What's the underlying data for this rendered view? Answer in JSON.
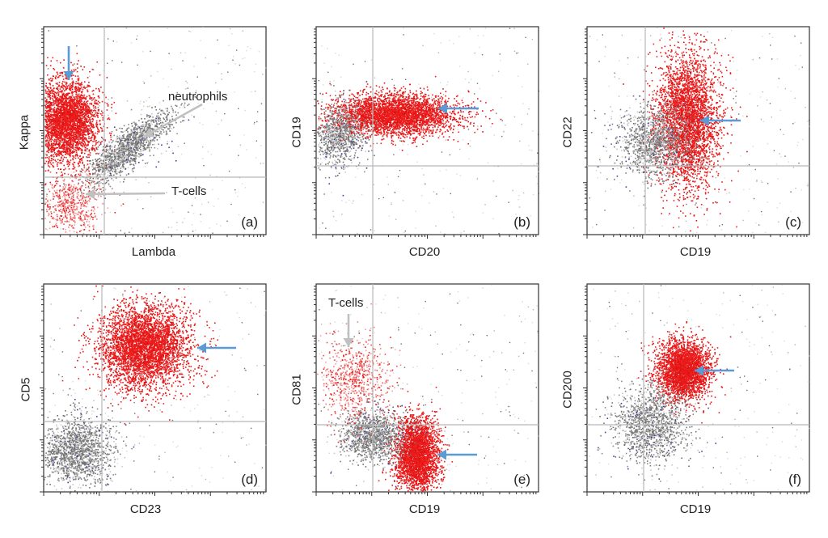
{
  "colors": {
    "cluster_red": "#ee1c1c",
    "cluster_gray": "#7a7a7a",
    "light_gray": "#c8c8c8",
    "arrow_blue": "#5b9bd5",
    "arrow_gray": "#c0c0c0",
    "dark_dots": "#333333",
    "blue_dots": "#4040a0"
  },
  "chart_data": [
    {
      "type": "scatter",
      "panel": "(a)",
      "xlabel": "Lambda",
      "ylabel": "Kappa",
      "scale": "log",
      "grid": false,
      "annotations": [
        {
          "text": "neutrophils",
          "arrow_color": "gray"
        },
        {
          "text": "T-cells",
          "arrow_color": "gray"
        },
        {
          "text": "",
          "arrow_color": "blue",
          "target": "Kappa-positive red population"
        }
      ],
      "series": [
        {
          "name": "",
          "color": "red",
          "cluster_center": [
            0.1,
            0.55
          ],
          "spread": [
            0.07,
            0.1
          ],
          "count": 3500
        },
        {
          "name": "",
          "color": "gray",
          "cluster_center": [
            0.38,
            0.42
          ],
          "spread": [
            0.09,
            0.06
          ],
          "count": 1400,
          "shape": "diagonal"
        },
        {
          "name": "",
          "color": "light-red",
          "cluster_center": [
            0.12,
            0.15
          ],
          "spread": [
            0.07,
            0.07
          ],
          "count": 600
        }
      ]
    },
    {
      "type": "scatter",
      "panel": "(b)",
      "xlabel": "CD20",
      "ylabel": "CD19",
      "scale": "log",
      "grid": false,
      "annotations": [
        {
          "text": "",
          "arrow_color": "blue",
          "target": "red population"
        }
      ],
      "series": [
        {
          "name": "",
          "color": "red",
          "cluster_center": [
            0.35,
            0.58
          ],
          "spread": [
            0.14,
            0.05
          ],
          "count": 3500
        },
        {
          "name": "",
          "color": "gray",
          "cluster_center": [
            0.1,
            0.48
          ],
          "spread": [
            0.06,
            0.07
          ],
          "count": 900
        }
      ]
    },
    {
      "type": "scatter",
      "panel": "(c)",
      "xlabel": "CD19",
      "ylabel": "CD22",
      "scale": "log",
      "grid": false,
      "annotations": [
        {
          "text": "",
          "arrow_color": "blue",
          "target": "red population"
        }
      ],
      "series": [
        {
          "name": "",
          "color": "red",
          "cluster_center": [
            0.45,
            0.55
          ],
          "spread": [
            0.07,
            0.16
          ],
          "count": 3500
        },
        {
          "name": "",
          "color": "gray",
          "cluster_center": [
            0.3,
            0.45
          ],
          "spread": [
            0.08,
            0.08
          ],
          "count": 1200
        }
      ]
    },
    {
      "type": "scatter",
      "panel": "(d)",
      "xlabel": "CD23",
      "ylabel": "CD5",
      "scale": "log",
      "grid": false,
      "annotations": [
        {
          "text": "",
          "arrow_color": "blue",
          "target": "red population"
        }
      ],
      "series": [
        {
          "name": "",
          "color": "red",
          "cluster_center": [
            0.45,
            0.7
          ],
          "spread": [
            0.1,
            0.1
          ],
          "count": 4000
        },
        {
          "name": "",
          "color": "gray",
          "cluster_center": [
            0.15,
            0.2
          ],
          "spread": [
            0.08,
            0.08
          ],
          "count": 1500
        }
      ]
    },
    {
      "type": "scatter",
      "panel": "(e)",
      "xlabel": "CD19",
      "ylabel": "CD81",
      "scale": "log",
      "grid": false,
      "annotations": [
        {
          "text": "T-cells",
          "arrow_color": "gray"
        },
        {
          "text": "",
          "arrow_color": "blue",
          "target": "red population"
        }
      ],
      "series": [
        {
          "name": "",
          "color": "red",
          "cluster_center": [
            0.45,
            0.18
          ],
          "spread": [
            0.05,
            0.09
          ],
          "count": 3000
        },
        {
          "name": "",
          "color": "gray",
          "cluster_center": [
            0.25,
            0.27
          ],
          "spread": [
            0.07,
            0.06
          ],
          "count": 1200
        },
        {
          "name": "",
          "color": "light-red",
          "cluster_center": [
            0.17,
            0.55
          ],
          "spread": [
            0.08,
            0.1
          ],
          "count": 700
        }
      ]
    },
    {
      "type": "scatter",
      "panel": "(f)",
      "xlabel": "CD19",
      "ylabel": "CD200",
      "scale": "log",
      "grid": false,
      "annotations": [
        {
          "text": "",
          "arrow_color": "blue",
          "target": "red population"
        }
      ],
      "series": [
        {
          "name": "",
          "color": "red",
          "cluster_center": [
            0.43,
            0.59
          ],
          "spread": [
            0.06,
            0.07
          ],
          "count": 3000
        },
        {
          "name": "",
          "color": "gray",
          "cluster_center": [
            0.28,
            0.33
          ],
          "spread": [
            0.08,
            0.09
          ],
          "count": 1300
        }
      ]
    }
  ]
}
